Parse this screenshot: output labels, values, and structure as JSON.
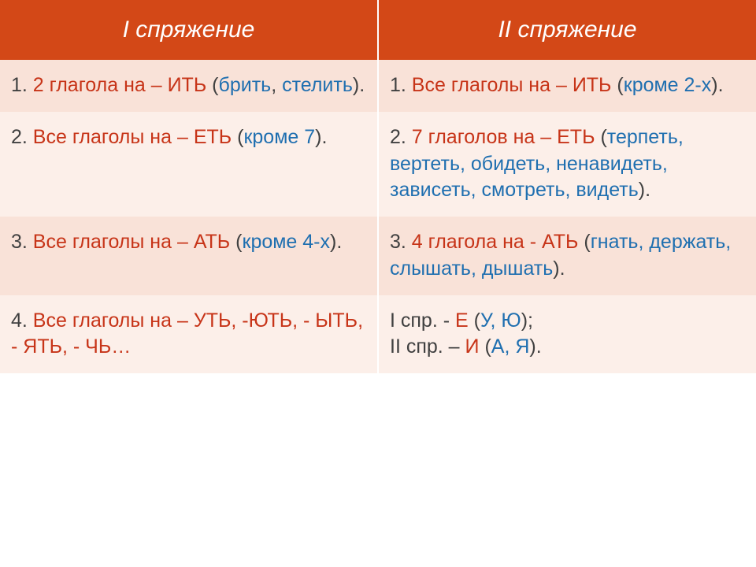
{
  "colors": {
    "header_bg": "#d34817",
    "header_text": "#ffffff",
    "row_light": "#f9e2d8",
    "row_lighter": "#fcefe9",
    "red": "#c73418",
    "blue": "#1f6fb0",
    "dark": "#404040"
  },
  "header": {
    "col1": "I спряжение",
    "col2": "II спряжение"
  },
  "rows": [
    {
      "bg": "row-light",
      "left": {
        "n": "1. ",
        "red1": "2 глагола на – ИТЬ",
        "rest1": " (",
        "blue1": "брить",
        "rest2": ", ",
        "blue2": "стелить",
        "rest3": ")."
      },
      "right": {
        "n": "1. ",
        "red1": "Все глаголы на – ИТЬ",
        "rest1": " (",
        "blue1": "кроме 2-х",
        "rest2": ")."
      }
    },
    {
      "bg": "row-lighter",
      "left": {
        "n": "2. ",
        "red1": "Все глаголы на – ЕТЬ",
        "rest1": " (",
        "blue1": "кроме 7",
        "rest2": ")."
      },
      "right": {
        "n": "2. ",
        "red1": "7 глаголов на – ЕТЬ",
        "rest1": " (",
        "blue1": "терпеть, вертеть, обидеть, ненавидеть, зависеть, смотреть, видеть",
        "rest2": ")."
      }
    },
    {
      "bg": "row-light",
      "left": {
        "n": "3. ",
        "red1": "Все глаголы на – АТЬ",
        "rest1": " (",
        "blue1": "кроме 4-х",
        "rest2": ")."
      },
      "right": {
        "n": "3. ",
        "red1": "4 глагола на - АТЬ",
        "rest1": " (",
        "blue1": "гнать, держать, слышать, дышать",
        "rest2": ")."
      }
    },
    {
      "bg": "row-lighter",
      "left": {
        "n": "4. ",
        "red1": "Все глаголы на – УТЬ, -ЮТЬ,  - ЫТЬ, - ЯТЬ, - ЧЬ…"
      },
      "right": {
        "l1a": "I спр. - ",
        "l1b": "Е",
        "l1c": " (",
        "l1d": "У, Ю",
        "l1e": ");",
        "l2a": "II спр. – ",
        "l2b": "И",
        "l2c": " (",
        "l2d": "А, Я",
        "l2e": ")."
      }
    }
  ]
}
